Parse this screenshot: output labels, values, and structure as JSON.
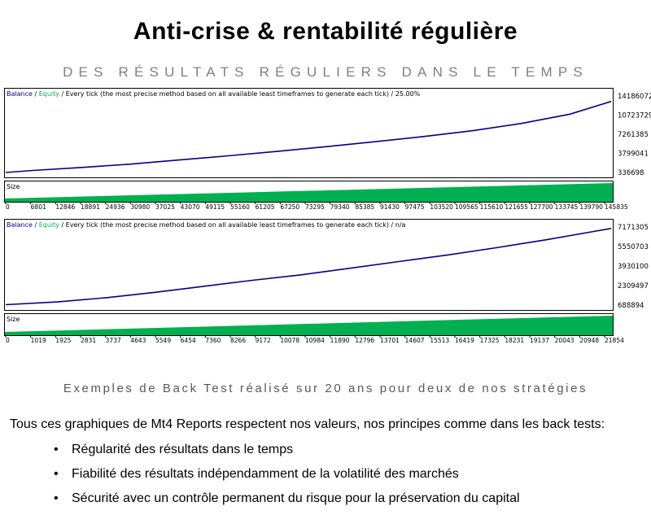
{
  "header": {
    "title": "Anti-crise & rentabilité régulière",
    "subtitle": "DES RÉSULTATS RÉGULIERS DANS LE TEMPS"
  },
  "chart_data": [
    {
      "type": "line",
      "legend": {
        "balance": "Balance",
        "equity": "Equity"
      },
      "header_text": "Every tick (the most precise method based on all available least timeframes to generate each tick)",
      "header_suffix": "25.00%",
      "sub_panel_label": "Size",
      "y_tick_labels": [
        "14186072",
        "10723729",
        "7261385",
        "3799041",
        "336698"
      ],
      "x_tick_labels": [
        "0",
        "6801",
        "12846",
        "18891",
        "24936",
        "30980",
        "37025",
        "43070",
        "49115",
        "55160",
        "61205",
        "67250",
        "73295",
        "79340",
        "85385",
        "91430",
        "97475",
        "103520",
        "109565",
        "115610",
        "121655",
        "127700",
        "133745",
        "139790",
        "145835"
      ],
      "ylim": [
        336698,
        14186072
      ],
      "xlim": [
        0,
        150000
      ],
      "series": [
        {
          "name": "Balance",
          "color": "#00008b",
          "x": [
            0,
            6801,
            18891,
            30980,
            43070,
            55160,
            67250,
            79340,
            91430,
            103520,
            115610,
            127700,
            139790,
            150000
          ],
          "y": [
            336698,
            700000,
            1250000,
            1850000,
            2600000,
            3350000,
            4150000,
            5000000,
            5900000,
            6850000,
            7900000,
            9200000,
            10900000,
            13200000
          ]
        }
      ],
      "colors": {
        "size_fill": "#00b050",
        "frame": "#000000"
      }
    },
    {
      "type": "line",
      "legend": {
        "balance": "Balance",
        "equity": "Equity"
      },
      "header_text": "Every tick (the most precise method based on all available least timeframes to generate each tick)",
      "header_suffix": "n/a",
      "sub_panel_label": "Size",
      "y_tick_labels": [
        "7171305",
        "5550703",
        "3930100",
        "2309497",
        "688894"
      ],
      "x_tick_labels": [
        "0",
        "1019",
        "1925",
        "2831",
        "3737",
        "4643",
        "5549",
        "6454",
        "7360",
        "8266",
        "9172",
        "10078",
        "10984",
        "11890",
        "12796",
        "13701",
        "14607",
        "15513",
        "16419",
        "17325",
        "18231",
        "19137",
        "20043",
        "20948",
        "21854"
      ],
      "ylim": [
        688894,
        7171305
      ],
      "xlim": [
        0,
        22500
      ],
      "series": [
        {
          "name": "Balance",
          "color": "#00008b",
          "x": [
            0,
            1925,
            3737,
            5549,
            7360,
            9172,
            10984,
            12796,
            14607,
            16419,
            18231,
            20043,
            21854,
            22500
          ],
          "y": [
            720000,
            950000,
            1300000,
            1750000,
            2250000,
            2750000,
            3200000,
            3750000,
            4300000,
            4850000,
            5450000,
            6100000,
            6800000,
            7050000
          ]
        }
      ],
      "colors": {
        "size_fill": "#00b050",
        "frame": "#000000"
      }
    }
  ],
  "footer": {
    "caption": "Exemples de Back Test réalisé sur 20 ans pour deux de nos stratégies",
    "intro": "Tous ces graphiques de Mt4 Reports respectent nos valeurs, nos principes comme dans les back tests:",
    "bullet_glyph": "•",
    "bullets": [
      "Régularité des résultats dans le temps",
      "Fiabilité des résultats indépendamment de la volatilité des marchés",
      "Sécurité avec un contrôle permanent du risque pour la préservation du capital"
    ]
  }
}
